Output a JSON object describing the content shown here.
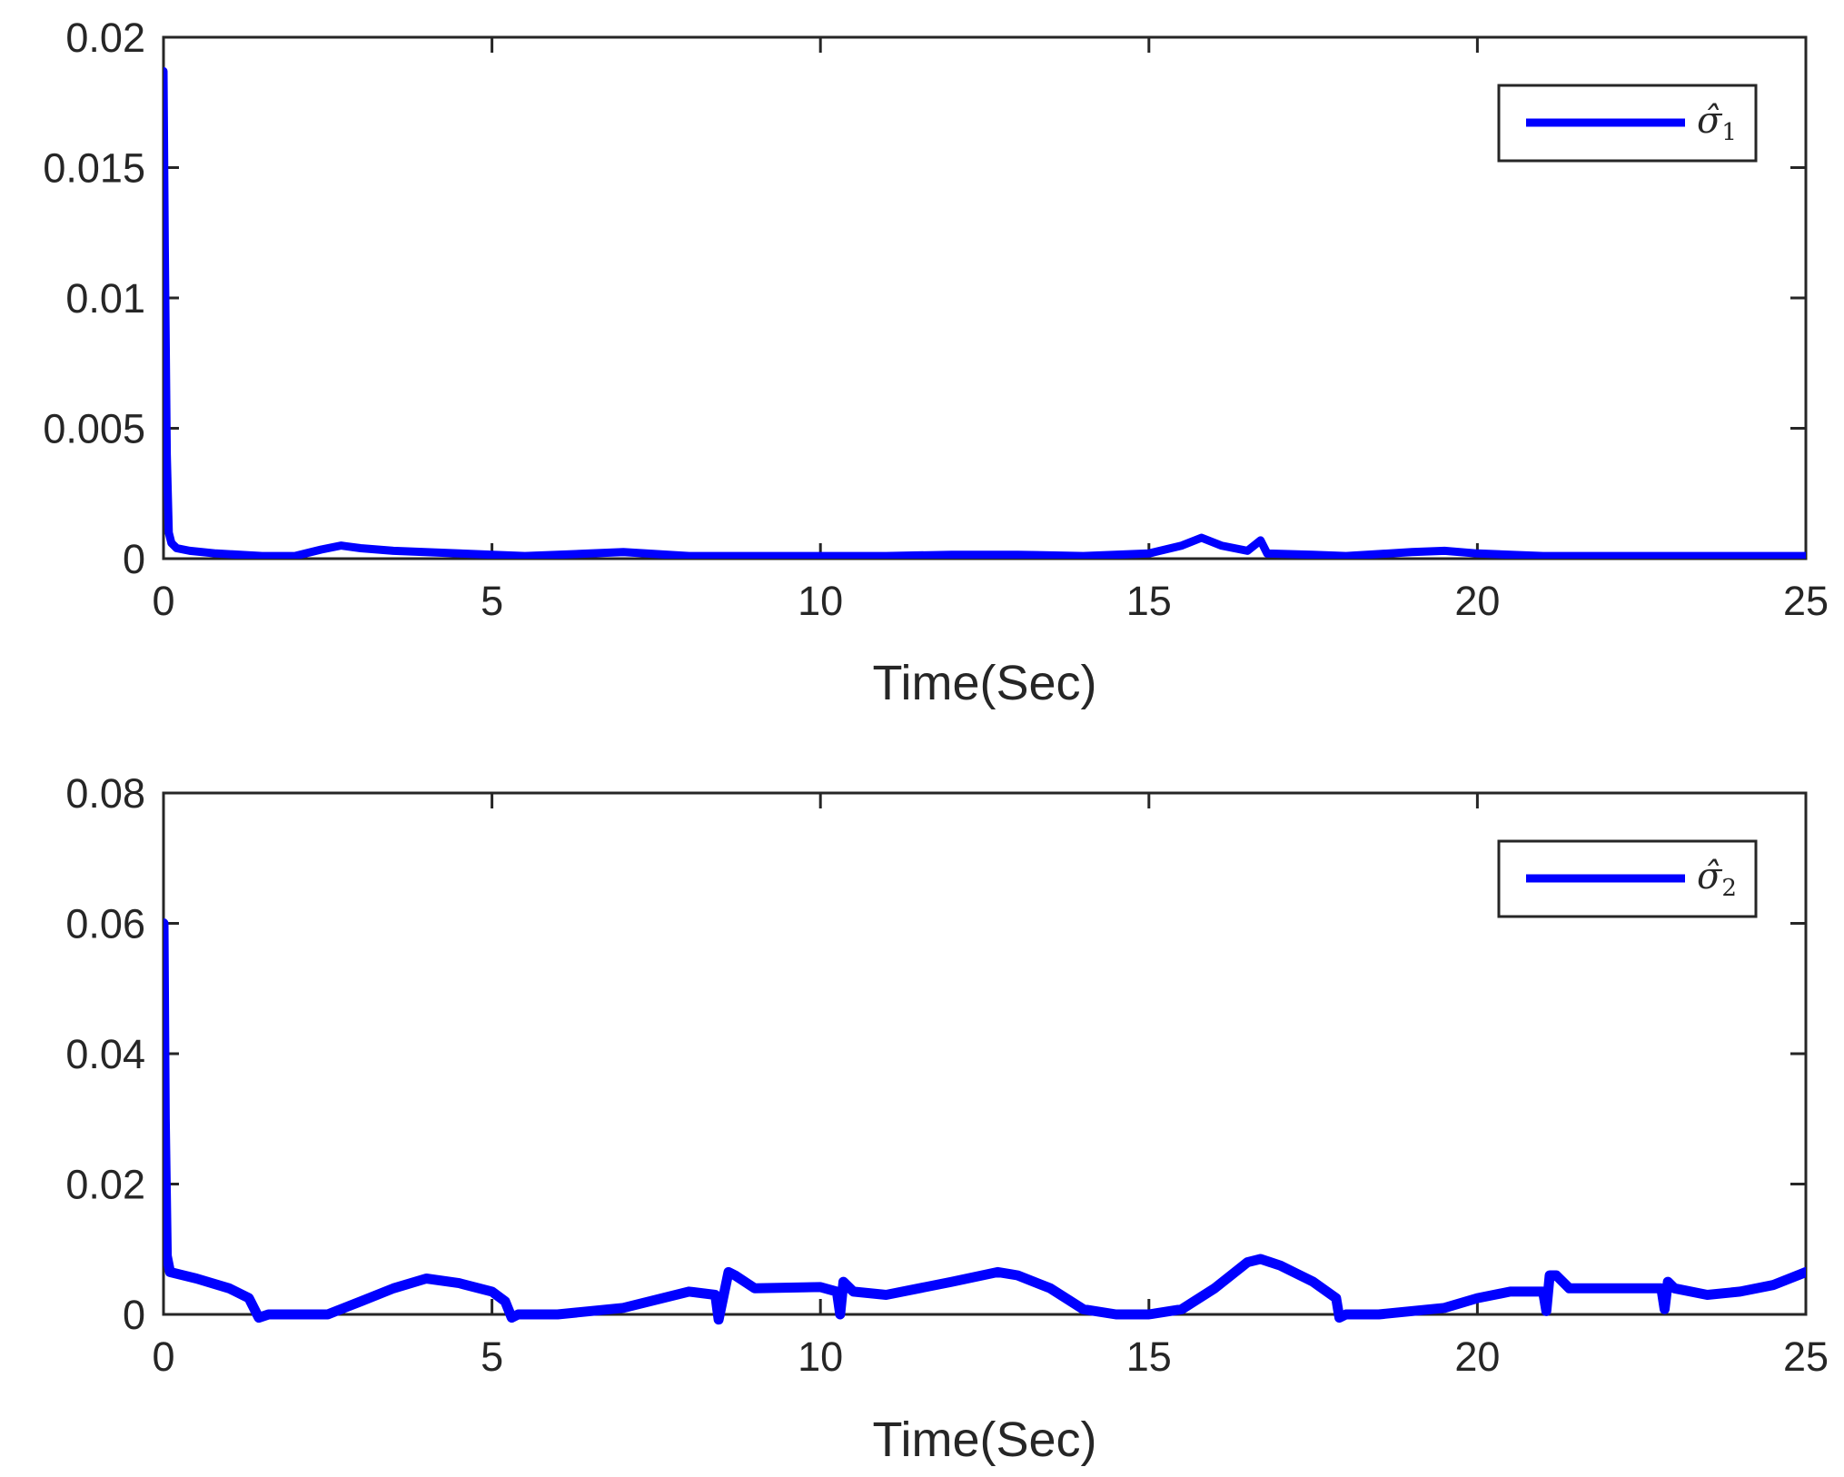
{
  "chart_data": [
    {
      "type": "line",
      "xlabel": "Time(Sec)",
      "ylabel": "",
      "xlim": [
        0,
        25
      ],
      "ylim": [
        0,
        0.02
      ],
      "xticks": [
        0,
        5,
        10,
        15,
        20,
        25
      ],
      "xtick_labels": [
        "0",
        "5",
        "10",
        "15",
        "20",
        "25"
      ],
      "yticks": [
        0,
        0.005,
        0.01,
        0.015,
        0.02
      ],
      "ytick_labels": [
        "0",
        "0.005",
        "0.01",
        "0.015",
        "0.02"
      ],
      "grid": false,
      "legend_position": "top-right",
      "legend_symbol": "σ̂",
      "legend_subscript": "1",
      "series_color": "#0000ff",
      "series": [
        {
          "x": [
            0,
            0.02,
            0.05,
            0.08,
            0.12,
            0.2,
            0.4,
            0.8,
            1.5,
            2.0,
            2.4,
            2.7,
            3.0,
            3.5,
            4.5,
            5.5,
            6.5,
            7.0,
            8.0,
            9.0,
            10.0,
            11.0,
            12.0,
            13.0,
            14.0,
            15.0,
            15.5,
            15.8,
            16.1,
            16.5,
            16.7,
            16.8,
            17.5,
            18.0,
            19.0,
            19.5,
            20.0,
            21.0,
            22.0,
            23.0,
            24.0,
            25.0
          ],
          "y": [
            0.0187,
            0.012,
            0.004,
            0.001,
            0.0006,
            0.0004,
            0.0003,
            0.0002,
            0.0001,
            0.0001,
            0.00035,
            0.0005,
            0.0004,
            0.0003,
            0.0002,
            0.0001,
            0.0002,
            0.00025,
            0.0001,
            0.0001,
            0.0001,
            0.0001,
            0.00015,
            0.00015,
            0.0001,
            0.0002,
            0.0005,
            0.0008,
            0.0005,
            0.0003,
            0.0007,
            0.0002,
            0.00015,
            0.0001,
            0.00025,
            0.0003,
            0.0002,
            0.0001,
            0.0001,
            0.0001,
            0.0001,
            0.0001
          ]
        }
      ]
    },
    {
      "type": "line",
      "xlabel": "Time(Sec)",
      "ylabel": "",
      "xlim": [
        0,
        25
      ],
      "ylim": [
        0,
        0.08
      ],
      "xticks": [
        0,
        5,
        10,
        15,
        20,
        25
      ],
      "xtick_labels": [
        "0",
        "5",
        "10",
        "15",
        "20",
        "25"
      ],
      "yticks": [
        0,
        0.02,
        0.04,
        0.06,
        0.08
      ],
      "ytick_labels": [
        "0",
        "0.02",
        "0.04",
        "0.06",
        "0.08"
      ],
      "grid": false,
      "legend_position": "top-right",
      "legend_symbol": "σ̂",
      "legend_subscript": "2",
      "series_color": "#0000ff",
      "series": [
        {
          "x": [
            0,
            0.02,
            0.05,
            0.1,
            0.5,
            1.0,
            1.3,
            1.4,
            1.45,
            1.6,
            2.0,
            2.5,
            3.0,
            3.5,
            4.0,
            4.5,
            5.0,
            5.2,
            5.3,
            5.4,
            6.0,
            7.0,
            8.0,
            8.4,
            8.45,
            8.6,
            8.7,
            9.0,
            10.0,
            10.25,
            10.3,
            10.35,
            10.5,
            11.0,
            12.0,
            12.7,
            13.0,
            13.5,
            14.0,
            14.5,
            15.0,
            15.5,
            16.0,
            16.5,
            16.7,
            17.0,
            17.5,
            17.85,
            17.9,
            18.0,
            18.5,
            19.5,
            20.0,
            20.5,
            21.0,
            21.05,
            21.1,
            21.2,
            21.4,
            22.0,
            22.5,
            22.8,
            22.85,
            22.9,
            23.0,
            23.5,
            24.0,
            24.5,
            25.0
          ],
          "y": [
            0.06,
            0.03,
            0.009,
            0.0065,
            0.0055,
            0.004,
            0.0025,
            0.0005,
            -0.0005,
            0.0,
            0.0,
            0.0,
            0.002,
            0.004,
            0.0055,
            0.0048,
            0.0035,
            0.002,
            -0.0005,
            0.0,
            0.0,
            0.001,
            0.0035,
            0.003,
            -0.0008,
            0.0065,
            0.006,
            0.004,
            0.0042,
            0.0035,
            0.0,
            0.005,
            0.0035,
            0.003,
            0.005,
            0.0065,
            0.006,
            0.004,
            0.0008,
            0.0,
            0.0,
            0.0008,
            0.004,
            0.008,
            0.0085,
            0.0075,
            0.005,
            0.0025,
            -0.0005,
            0.0,
            0.0,
            0.001,
            0.0025,
            0.0035,
            0.0035,
            0.0005,
            0.006,
            0.006,
            0.004,
            0.004,
            0.004,
            0.004,
            0.0008,
            0.005,
            0.004,
            0.003,
            0.0035,
            0.0045,
            0.0065
          ]
        }
      ]
    }
  ]
}
